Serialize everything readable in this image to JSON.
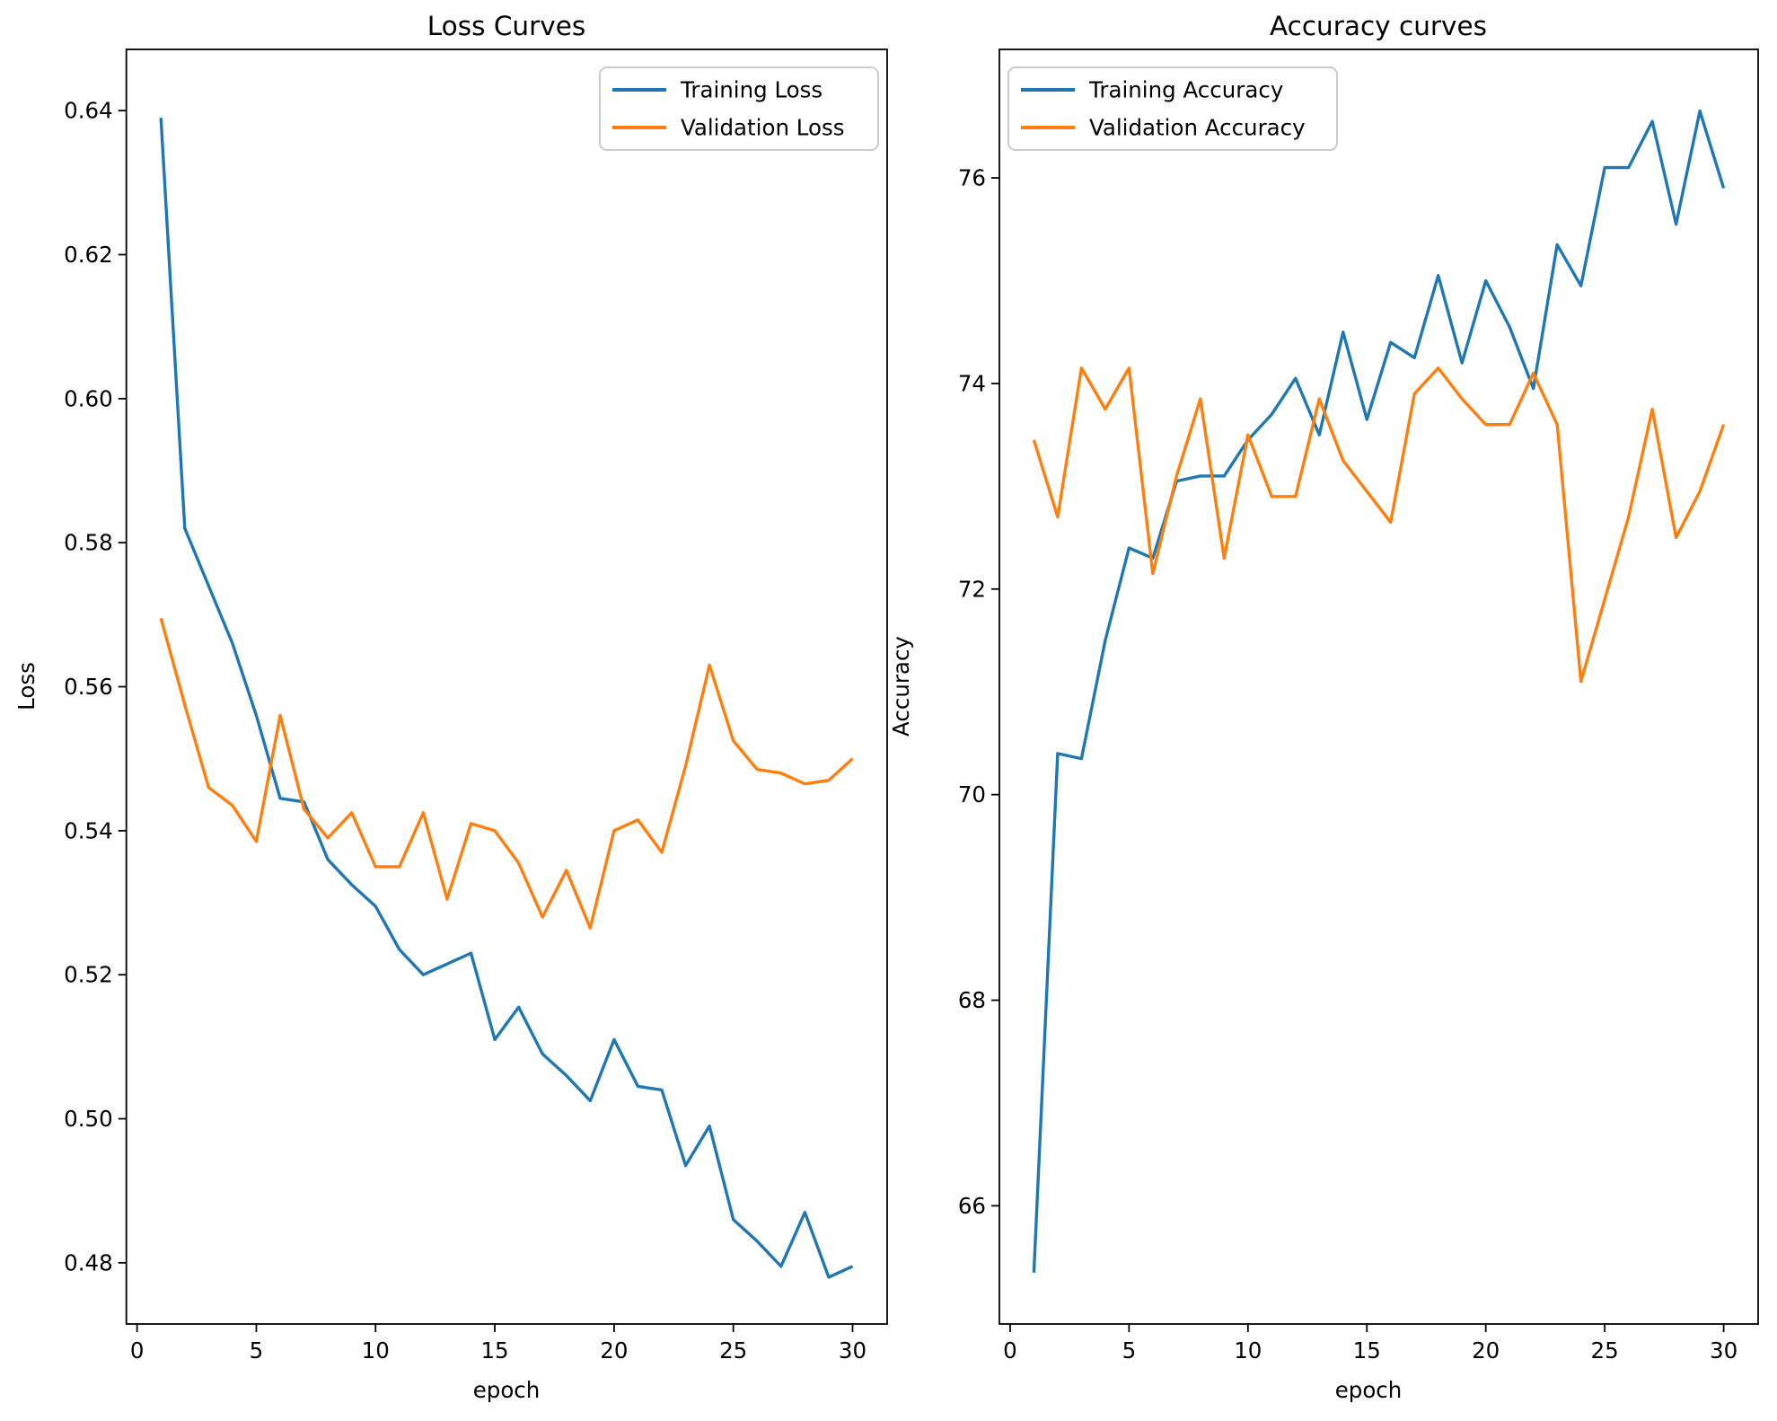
{
  "figure": {
    "background": "#ffffff"
  },
  "colors": {
    "training_series": "#1f77b4",
    "validation_series": "#ff7f0e",
    "text": "#000000",
    "spine": "#000000",
    "legend_border": "#cccccc",
    "legend_fill": "#ffffff"
  },
  "chart_data": [
    {
      "type": "line",
      "title": "Loss Curves",
      "xlabel": "epoch",
      "ylabel": "Loss",
      "grid": false,
      "legend_position": "upper right",
      "x": [
        1,
        2,
        3,
        4,
        5,
        6,
        7,
        8,
        9,
        10,
        11,
        12,
        13,
        14,
        15,
        16,
        17,
        18,
        19,
        20,
        21,
        22,
        23,
        24,
        25,
        26,
        27,
        28,
        29,
        30
      ],
      "series": [
        {
          "name": "Training Loss",
          "color": "#1f77b4",
          "values": [
            0.639,
            0.582,
            0.574,
            0.566,
            0.556,
            0.5445,
            0.544,
            0.536,
            0.5325,
            0.5295,
            0.5235,
            0.52,
            0.5215,
            0.523,
            0.511,
            0.5155,
            0.509,
            0.506,
            0.5025,
            0.511,
            0.5045,
            0.504,
            0.4935,
            0.499,
            0.486,
            0.483,
            0.4795,
            0.487,
            0.478,
            0.4795
          ]
        },
        {
          "name": "Validation Loss",
          "color": "#ff7f0e",
          "values": [
            0.5695,
            0.5575,
            0.546,
            0.5435,
            0.5385,
            0.556,
            0.543,
            0.539,
            0.5425,
            0.535,
            0.535,
            0.5425,
            0.5305,
            0.541,
            0.54,
            0.5355,
            0.528,
            0.5345,
            0.5265,
            0.54,
            0.5415,
            0.537,
            0.549,
            0.563,
            0.5525,
            0.5485,
            0.548,
            0.5465,
            0.547,
            0.55
          ]
        }
      ],
      "xlim": [
        -0.45,
        31.45
      ],
      "ylim": [
        0.4715,
        0.6485
      ],
      "xticks": [
        0,
        5,
        10,
        15,
        20,
        25,
        30
      ],
      "yticks": [
        0.48,
        0.5,
        0.52,
        0.54,
        0.56,
        0.58,
        0.6,
        0.62,
        0.64
      ],
      "ytick_labels": [
        "0.48",
        "0.50",
        "0.52",
        "0.54",
        "0.56",
        "0.58",
        "0.60",
        "0.62",
        "0.64"
      ]
    },
    {
      "type": "line",
      "title": "Accuracy curves",
      "xlabel": "epoch",
      "ylabel": "Accuracy",
      "grid": false,
      "legend_position": "upper left",
      "x": [
        1,
        2,
        3,
        4,
        5,
        6,
        7,
        8,
        9,
        10,
        11,
        12,
        13,
        14,
        15,
        16,
        17,
        18,
        19,
        20,
        21,
        22,
        23,
        24,
        25,
        26,
        27,
        28,
        29,
        30
      ],
      "series": [
        {
          "name": "Training Accuracy",
          "color": "#1f77b4",
          "values": [
            65.35,
            70.4,
            70.35,
            71.5,
            72.4,
            72.3,
            73.05,
            73.1,
            73.1,
            73.45,
            73.7,
            74.05,
            73.5,
            74.5,
            73.65,
            74.4,
            74.25,
            75.05,
            74.2,
            75.0,
            74.55,
            73.95,
            75.35,
            74.95,
            76.1,
            76.1,
            76.55,
            75.55,
            76.65,
            75.9
          ]
        },
        {
          "name": "Validation Accuracy",
          "color": "#ff7f0e",
          "values": [
            73.45,
            72.7,
            74.15,
            73.75,
            74.15,
            72.15,
            73.1,
            73.85,
            72.3,
            73.5,
            72.9,
            72.9,
            73.85,
            73.25,
            72.95,
            72.65,
            73.9,
            74.15,
            73.85,
            73.6,
            73.6,
            74.1,
            73.6,
            71.1,
            71.9,
            72.7,
            73.75,
            72.5,
            72.95,
            73.6
          ]
        }
      ],
      "xlim": [
        -0.45,
        31.45
      ],
      "ylim": [
        64.85,
        77.25
      ],
      "xticks": [
        0,
        5,
        10,
        15,
        20,
        25,
        30
      ],
      "yticks": [
        66,
        68,
        70,
        72,
        74,
        76
      ],
      "ytick_labels": [
        "66",
        "68",
        "70",
        "72",
        "74",
        "76"
      ]
    }
  ]
}
